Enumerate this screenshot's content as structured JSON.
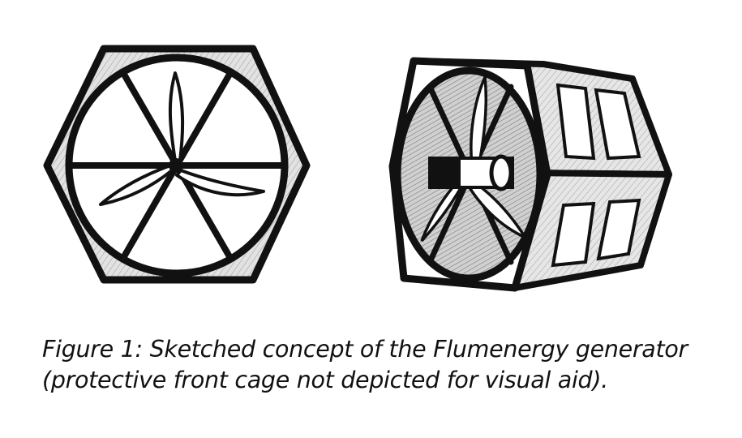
{
  "caption": {
    "line1": "Figure 1: Sketched concept of the Flumenergy generator",
    "line2": "(protective front cage not depicted for visual aid)."
  },
  "colors": {
    "ink": "#111111",
    "shade": "#d9d9d9",
    "paper": "#ffffff"
  },
  "sketches": {
    "front_view": "hexagonal-frame-with-turbine",
    "isometric_view": "hexagonal-prism-with-turbine-and-panels"
  }
}
